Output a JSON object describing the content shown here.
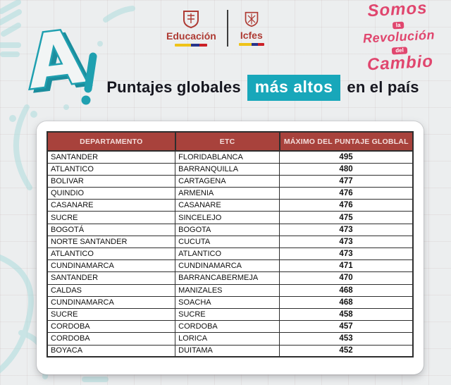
{
  "brand": {
    "letter_mark": "A",
    "exclaim": "!",
    "ministry_label": "Educación",
    "icfes_label": "Icfes",
    "campaign": {
      "word1": "Somos",
      "word2": "la",
      "word3": "Revolución",
      "word4": "del",
      "word5": "Cambio"
    }
  },
  "title": {
    "prefix": "Puntajes globales",
    "highlight": "más altos",
    "suffix": "en el país"
  },
  "table": {
    "headers": [
      "DEPARTAMENTO",
      "ETC",
      "MÁXIMO DEL PUNTAJE GLOBLAL"
    ],
    "rows": [
      [
        "SANTANDER",
        "FLORIDABLANCA",
        "495"
      ],
      [
        "ATLANTICO",
        "BARRANQUILLA",
        "480"
      ],
      [
        "BOLIVAR",
        "CARTAGENA",
        "477"
      ],
      [
        "QUINDIO",
        "ARMENIA",
        "476"
      ],
      [
        "CASANARE",
        "CASANARE",
        "476"
      ],
      [
        "SUCRE",
        "SINCELEJO",
        "475"
      ],
      [
        "BOGOTÁ",
        "BOGOTA",
        "473"
      ],
      [
        "NORTE SANTANDER",
        "CUCUTA",
        "473"
      ],
      [
        "ATLANTICO",
        "ATLANTICO",
        "473"
      ],
      [
        "CUNDINAMARCA",
        "CUNDINAMARCA",
        "471"
      ],
      [
        "SANTANDER",
        "BARRANCABERMEJA",
        "470"
      ],
      [
        "CALDAS",
        "MANIZALES",
        "468"
      ],
      [
        "CUNDINAMARCA",
        "SOACHA",
        "468"
      ],
      [
        "SUCRE",
        "SUCRE",
        "458"
      ],
      [
        "CORDOBA",
        "CORDOBA",
        "457"
      ],
      [
        "CORDOBA",
        "LORICA",
        "453"
      ],
      [
        "BOYACA",
        "DUITAMA",
        "452"
      ]
    ]
  },
  "chart_data": {
    "type": "table",
    "title": "Puntajes globales más altos en el país",
    "columns": [
      "DEPARTAMENTO",
      "ETC",
      "MÁXIMO DEL PUNTAJE GLOBLAL"
    ],
    "rows": [
      {
        "departamento": "SANTANDER",
        "etc": "FLORIDABLANCA",
        "puntaje": 495
      },
      {
        "departamento": "ATLANTICO",
        "etc": "BARRANQUILLA",
        "puntaje": 480
      },
      {
        "departamento": "BOLIVAR",
        "etc": "CARTAGENA",
        "puntaje": 477
      },
      {
        "departamento": "QUINDIO",
        "etc": "ARMENIA",
        "puntaje": 476
      },
      {
        "departamento": "CASANARE",
        "etc": "CASANARE",
        "puntaje": 476
      },
      {
        "departamento": "SUCRE",
        "etc": "SINCELEJO",
        "puntaje": 475
      },
      {
        "departamento": "BOGOTÁ",
        "etc": "BOGOTA",
        "puntaje": 473
      },
      {
        "departamento": "NORTE SANTANDER",
        "etc": "CUCUTA",
        "puntaje": 473
      },
      {
        "departamento": "ATLANTICO",
        "etc": "ATLANTICO",
        "puntaje": 473
      },
      {
        "departamento": "CUNDINAMARCA",
        "etc": "CUNDINAMARCA",
        "puntaje": 471
      },
      {
        "departamento": "SANTANDER",
        "etc": "BARRANCABERMEJA",
        "puntaje": 470
      },
      {
        "departamento": "CALDAS",
        "etc": "MANIZALES",
        "puntaje": 468
      },
      {
        "departamento": "CUNDINAMARCA",
        "etc": "SOACHA",
        "puntaje": 468
      },
      {
        "departamento": "SUCRE",
        "etc": "SUCRE",
        "puntaje": 458
      },
      {
        "departamento": "CORDOBA",
        "etc": "CORDOBA",
        "puntaje": 457
      },
      {
        "departamento": "CORDOBA",
        "etc": "LORICA",
        "puntaje": 453
      },
      {
        "departamento": "BOYACA",
        "etc": "DUITAMA",
        "puntaje": 452
      }
    ]
  },
  "colors": {
    "accent_teal": "#18a7ba",
    "table_header_red": "#a8423c",
    "campaign_pink": "#e0466e",
    "logo_red": "#ae3a33",
    "flag_yellow": "#efc319",
    "flag_blue": "#27348b",
    "flag_red": "#cb2027"
  }
}
